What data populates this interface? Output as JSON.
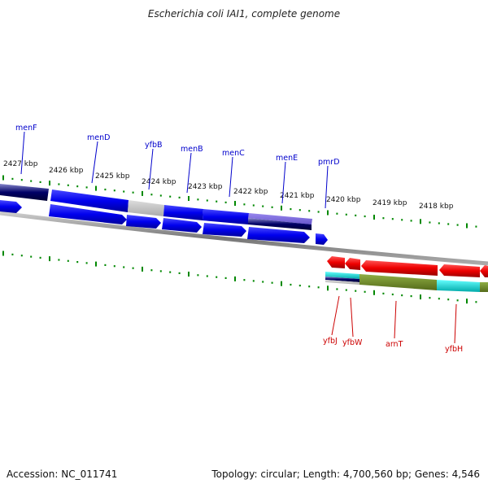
{
  "title": "Escherichia coli IAI1, complete genome",
  "footer": {
    "accession": "Accession: NC_011741",
    "topology": "Topology: circular; Length: 4,700,560 bp; Genes: 4,546"
  },
  "kbp_labels": [
    "2427 kbp",
    "2426 kbp",
    "2425 kbp",
    "2424 kbp",
    "2423 kbp",
    "2422 kbp",
    "2421 kbp",
    "2420 kbp",
    "2419 kbp",
    "2418 kbp"
  ],
  "top_genes": [
    "menF",
    "menD",
    "yfbB",
    "menB",
    "menC",
    "menE",
    "pmrD"
  ],
  "bottom_genes": [
    "yfbJ",
    "yfbW",
    "arnT",
    "yfbH"
  ],
  "colors": {
    "forward": "#0000ee",
    "navy": "#000066",
    "purple": "#6655cc",
    "grey": "#bbbbbb",
    "reverse": "#ee0000",
    "olive": "#6b8e23",
    "cyan": "#00cccc",
    "tick": "#008800",
    "top_label": "#0000cc",
    "bottom_label": "#cc0000"
  }
}
